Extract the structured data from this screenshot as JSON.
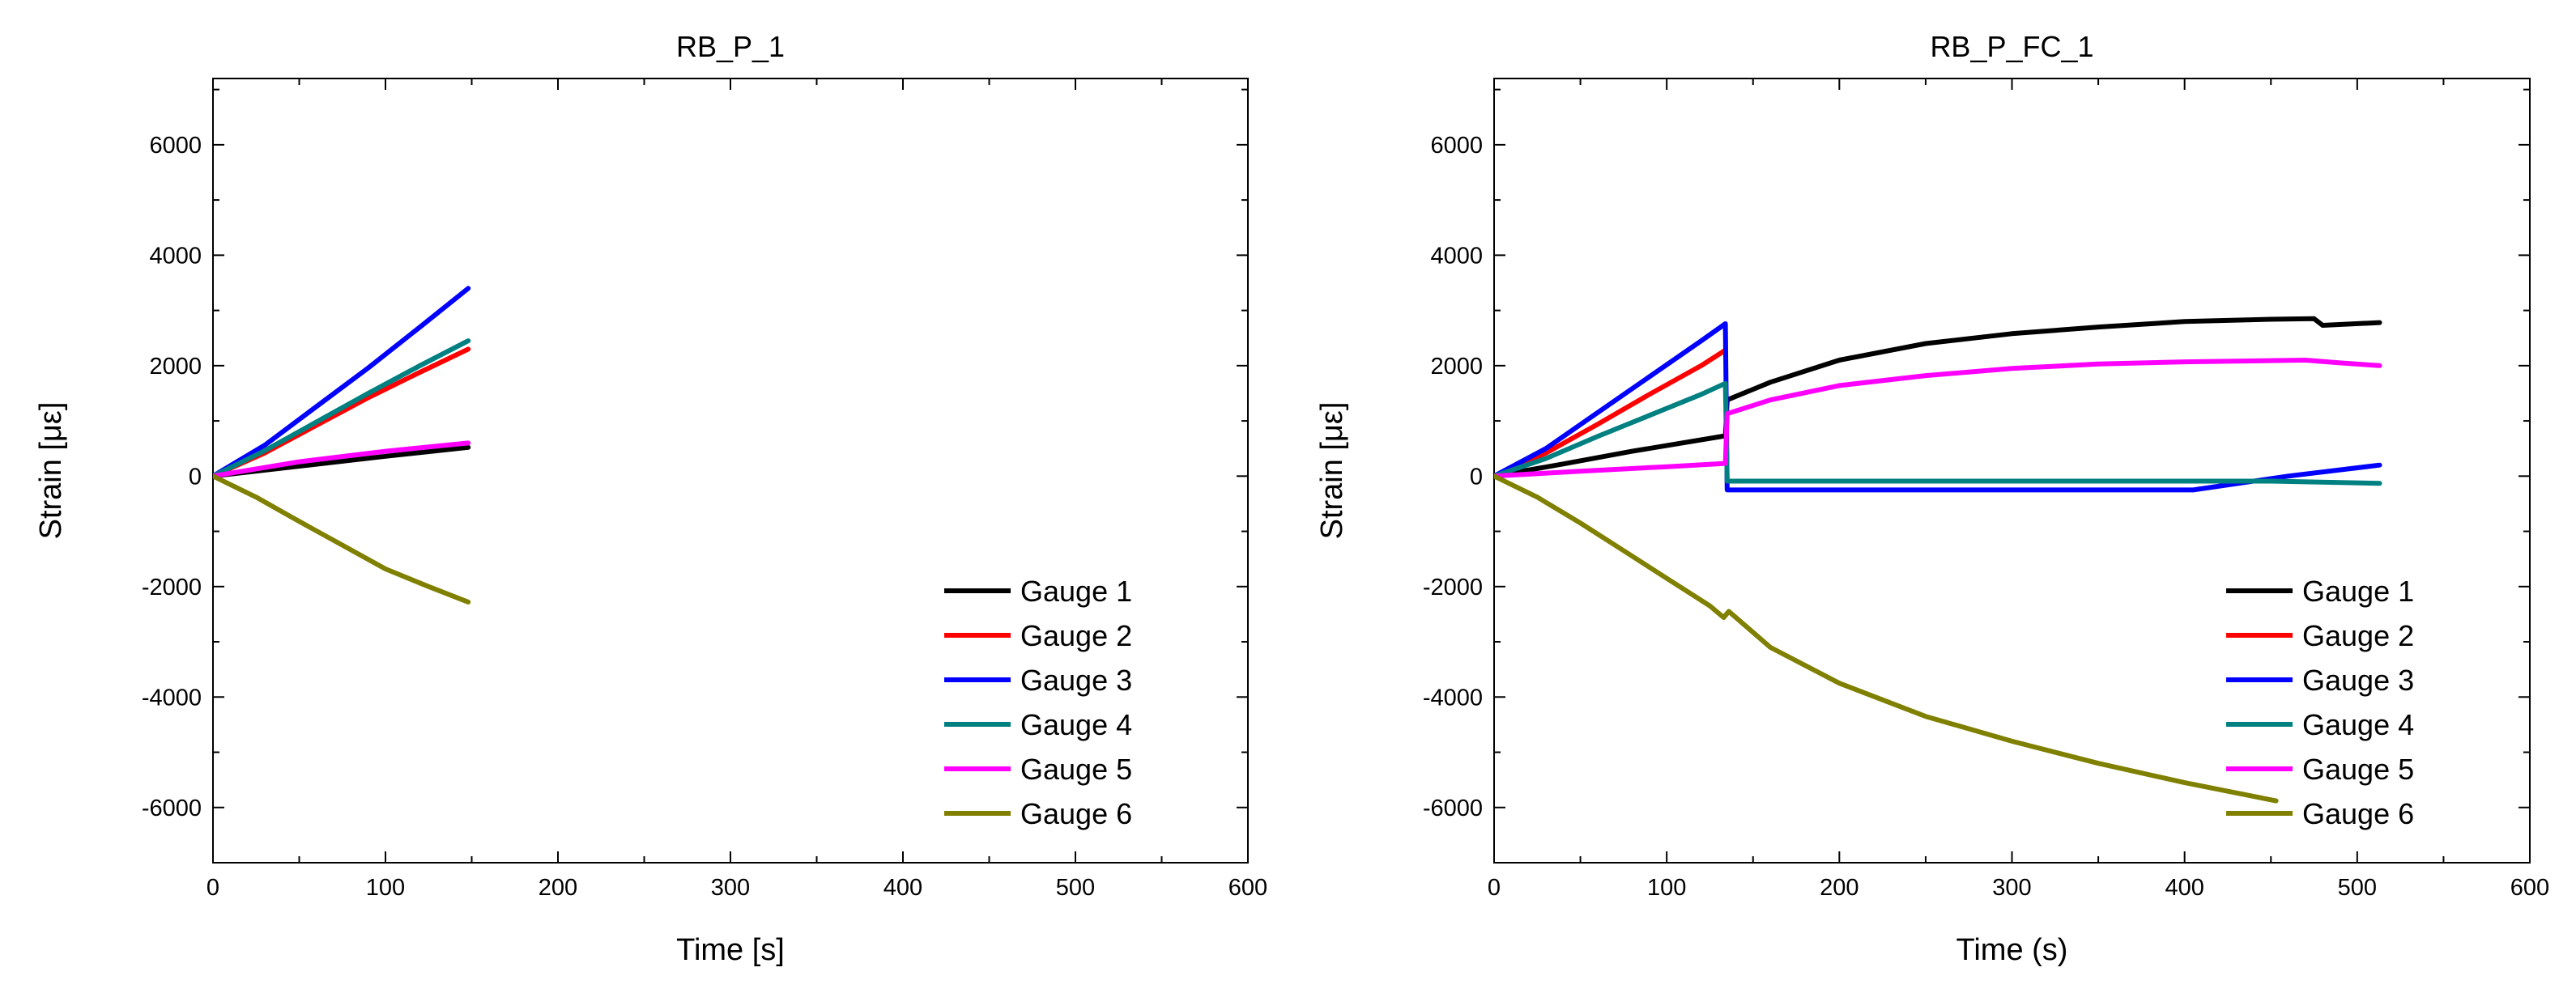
{
  "chart_data": [
    {
      "type": "line",
      "title": "RB_P_1",
      "xlabel": "Time [s]",
      "ylabel": "Strain [με]",
      "xlim": [
        0,
        600
      ],
      "ylim": [
        -7000,
        7200
      ],
      "xticks": [
        0,
        100,
        200,
        300,
        400,
        500,
        600
      ],
      "yticks": [
        -6000,
        -4000,
        -2000,
        0,
        2000,
        4000,
        6000
      ],
      "x_tick_labels": [
        "0",
        "100",
        "200",
        "300",
        "400",
        "500",
        "600"
      ],
      "y_tick_labels": [
        "-6000",
        "-4000",
        "-2000",
        "0",
        "2000",
        "4000",
        "6000"
      ],
      "legend_position": "bottom-right",
      "series": [
        {
          "name": "Gauge 1",
          "color": "#000000",
          "x": [
            0,
            50,
            100,
            148
          ],
          "y": [
            0,
            180,
            360,
            520
          ]
        },
        {
          "name": "Gauge 2",
          "color": "#ff0000",
          "x": [
            0,
            30,
            60,
            90,
            120,
            148
          ],
          "y": [
            0,
            420,
            920,
            1420,
            1880,
            2300
          ]
        },
        {
          "name": "Gauge 3",
          "color": "#0000ff",
          "x": [
            0,
            30,
            60,
            90,
            120,
            148
          ],
          "y": [
            0,
            560,
            1260,
            1960,
            2700,
            3400
          ]
        },
        {
          "name": "Gauge 4",
          "color": "#008080",
          "x": [
            0,
            30,
            60,
            90,
            120,
            148
          ],
          "y": [
            0,
            460,
            980,
            1500,
            2000,
            2450
          ]
        },
        {
          "name": "Gauge 5",
          "color": "#ff00ff",
          "x": [
            0,
            50,
            100,
            148
          ],
          "y": [
            0,
            260,
            450,
            600
          ]
        },
        {
          "name": "Gauge 6",
          "color": "#808000",
          "x": [
            0,
            25,
            50,
            75,
            100,
            125,
            148
          ],
          "y": [
            0,
            -380,
            -820,
            -1250,
            -1680,
            -2000,
            -2280
          ]
        }
      ],
      "legend": [
        "Gauge 1",
        "Gauge 2",
        "Gauge 3",
        "Gauge 4",
        "Gauge 5",
        "Gauge 6"
      ]
    },
    {
      "type": "line",
      "title": "RB_P_FC_1",
      "xlabel": "Time (s)",
      "ylabel": "Strain [με]",
      "xlim": [
        0,
        600
      ],
      "ylim": [
        -7000,
        7200
      ],
      "xticks": [
        0,
        100,
        200,
        300,
        400,
        500,
        600
      ],
      "yticks": [
        -6000,
        -4000,
        -2000,
        0,
        2000,
        4000,
        6000
      ],
      "x_tick_labels": [
        "0",
        "100",
        "200",
        "300",
        "400",
        "500",
        "600"
      ],
      "y_tick_labels": [
        "-6000",
        "-4000",
        "-2000",
        "0",
        "2000",
        "4000",
        "6000"
      ],
      "legend_position": "bottom-right",
      "series": [
        {
          "name": "Gauge 1",
          "color": "#000000",
          "x": [
            0,
            40,
            80,
            134,
            135,
            160,
            200,
            250,
            300,
            350,
            400,
            450,
            475,
            480,
            513
          ],
          "y": [
            0,
            220,
            450,
            730,
            1380,
            1700,
            2100,
            2400,
            2580,
            2700,
            2800,
            2840,
            2850,
            2730,
            2780
          ]
        },
        {
          "name": "Gauge 2",
          "color": "#ff0000",
          "x": [
            0,
            30,
            60,
            90,
            120,
            134
          ],
          "y": [
            0,
            420,
            940,
            1480,
            2000,
            2280
          ]
        },
        {
          "name": "Gauge 3",
          "color": "#0000ff",
          "x": [
            0,
            30,
            60,
            90,
            120,
            134,
            135,
            200,
            300,
            405,
            460,
            513
          ],
          "y": [
            0,
            500,
            1150,
            1800,
            2450,
            2760,
            -250,
            -250,
            -250,
            -250,
            0,
            200
          ]
        },
        {
          "name": "Gauge 4",
          "color": "#008080",
          "x": [
            0,
            30,
            60,
            90,
            120,
            134,
            135,
            300,
            450,
            513
          ],
          "y": [
            0,
            320,
            720,
            1100,
            1480,
            1680,
            -90,
            -90,
            -90,
            -130
          ]
        },
        {
          "name": "Gauge 5",
          "color": "#ff00ff",
          "x": [
            0,
            50,
            100,
            134,
            135,
            160,
            200,
            250,
            300,
            350,
            400,
            470,
            490,
            513
          ],
          "y": [
            0,
            90,
            170,
            230,
            1130,
            1380,
            1640,
            1820,
            1950,
            2030,
            2070,
            2100,
            2050,
            2000
          ]
        },
        {
          "name": "Gauge 6",
          "color": "#808000",
          "x": [
            0,
            25,
            50,
            75,
            100,
            125,
            133,
            136,
            160,
            200,
            250,
            300,
            350,
            400,
            453
          ],
          "y": [
            0,
            -380,
            -850,
            -1350,
            -1850,
            -2350,
            -2560,
            -2450,
            -3100,
            -3750,
            -4350,
            -4800,
            -5200,
            -5550,
            -5880
          ]
        }
      ],
      "legend": [
        "Gauge 1",
        "Gauge 2",
        "Gauge 3",
        "Gauge 4",
        "Gauge 5",
        "Gauge 6"
      ]
    }
  ]
}
